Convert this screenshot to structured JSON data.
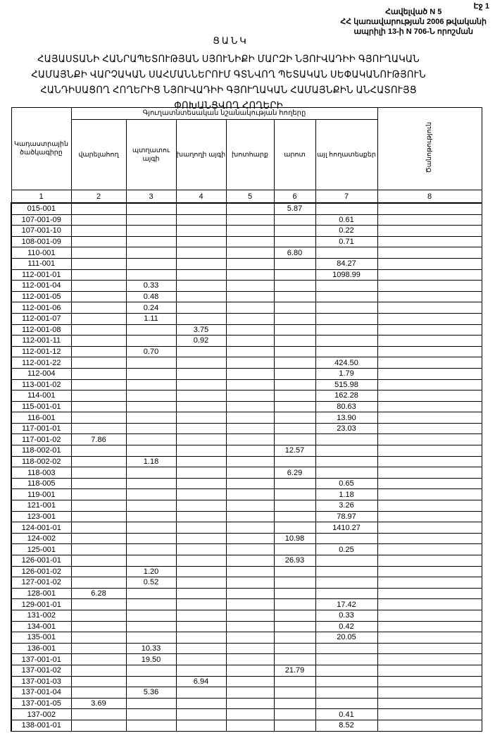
{
  "header": {
    "page": "Էջ 1",
    "annex_lines": [
      "Հավելված N 5",
      "ՀՀ կառավարության 2006 թվականի",
      "ապրիլի 13-ի N 706-Ն որոշման"
    ],
    "list_title": "ՑԱՆԿ",
    "main_title": "ՀԱՅԱՍՏԱՆԻ ՀԱՆՐԱՊԵՏՈՒԹՅԱՆ ՍՅՈՒՆԻՔԻ ՄԱՐԶԻ ՆՅՈՒՎԱԴԻԻ ԳՅՈՒՂԱԿԱՆ ՀԱՄԱՅՆՔԻ ՎԱՐՉԱԿԱՆ ՍԱՀՄԱՆՆԵՐՈՒՄ ԳՏՆՎՈՂ ՊԵՏԱԿԱՆ ՍԵՓԱԿԱՆՈՒԹՅՈՒՆ ՀԱՆԴԻՍԱՑՈՂ ՀՈՂԵՐԻՑ ՆՅՈՒՎԱԴԻԻ ԳՅՈՒՂԱԿԱՆ ՀԱՄԱՅՆՔԻՆ ԱՆՀԱՏՈՒՅՑ ՓՈԽԱՆՑՎՈՂ ՀՈՂԵՐԻ"
  },
  "table": {
    "group_header": "Գյուղատնտեսական նշանակության հողերը",
    "columns": [
      "Կադաստրային ծածկագիրը",
      "վարելահող",
      "պտղատու այգի",
      "խաղողի այգի",
      "խոտհարք",
      "արոտ",
      "այլ հողատեսքեր",
      "Ծանոթություն"
    ],
    "column_numbers": [
      "1",
      "2",
      "3",
      "4",
      "5",
      "6",
      "7",
      "8"
    ],
    "rows": [
      [
        "015-001",
        "",
        "",
        "",
        "",
        "5.87",
        ""
      ],
      [
        "107-001-09",
        "",
        "",
        "",
        "",
        "",
        "0.61"
      ],
      [
        "107-001-10",
        "",
        "",
        "",
        "",
        "",
        "0.22"
      ],
      [
        "108-001-09",
        "",
        "",
        "",
        "",
        "",
        "0.71"
      ],
      [
        "110-001",
        "",
        "",
        "",
        "",
        "6.80",
        ""
      ],
      [
        "111-001",
        "",
        "",
        "",
        "",
        "",
        "84.27"
      ],
      [
        "112-001-01",
        "",
        "",
        "",
        "",
        "",
        "1098.99"
      ],
      [
        "112-001-04",
        "",
        "0.33",
        "",
        "",
        "",
        ""
      ],
      [
        "112-001-05",
        "",
        "0.48",
        "",
        "",
        "",
        ""
      ],
      [
        "112-001-06",
        "",
        "0.24",
        "",
        "",
        "",
        ""
      ],
      [
        "112-001-07",
        "",
        "1.11",
        "",
        "",
        "",
        ""
      ],
      [
        "112-001-08",
        "",
        "",
        "3.75",
        "",
        "",
        ""
      ],
      [
        "112-001-11",
        "",
        "",
        "0.92",
        "",
        "",
        ""
      ],
      [
        "112-001-12",
        "",
        "0.70",
        "",
        "",
        "",
        ""
      ],
      [
        "112-001-22",
        "",
        "",
        "",
        "",
        "",
        "424.50"
      ],
      [
        "112-004",
        "",
        "",
        "",
        "",
        "",
        "1.79"
      ],
      [
        "113-001-02",
        "",
        "",
        "",
        "",
        "",
        "515.98"
      ],
      [
        "114-001",
        "",
        "",
        "",
        "",
        "",
        "162.28"
      ],
      [
        "115-001-01",
        "",
        "",
        "",
        "",
        "",
        "80.63"
      ],
      [
        "116-001",
        "",
        "",
        "",
        "",
        "",
        "13.90"
      ],
      [
        "117-001-01",
        "",
        "",
        "",
        "",
        "",
        "23.03"
      ],
      [
        "117-001-02",
        "7.86",
        "",
        "",
        "",
        "",
        ""
      ],
      [
        "118-002-01",
        "",
        "",
        "",
        "",
        "12.57",
        ""
      ],
      [
        "118-002-02",
        "",
        "1.18",
        "",
        "",
        "",
        ""
      ],
      [
        "118-003",
        "",
        "",
        "",
        "",
        "6.29",
        ""
      ],
      [
        "118-005",
        "",
        "",
        "",
        "",
        "",
        "0.65"
      ],
      [
        "119-001",
        "",
        "",
        "",
        "",
        "",
        "1.18"
      ],
      [
        "121-001",
        "",
        "",
        "",
        "",
        "",
        "3.26"
      ],
      [
        "123-001",
        "",
        "",
        "",
        "",
        "",
        "78.97"
      ],
      [
        "124-001-01",
        "",
        "",
        "",
        "",
        "",
        "1410.27"
      ],
      [
        "124-002",
        "",
        "",
        "",
        "",
        "10.98",
        ""
      ],
      [
        "125-001",
        "",
        "",
        "",
        "",
        "",
        "0.25"
      ],
      [
        "126-001-01",
        "",
        "",
        "",
        "",
        "26.93",
        ""
      ],
      [
        "126-001-02",
        "",
        "1.20",
        "",
        "",
        "",
        ""
      ],
      [
        "127-001-02",
        "",
        "0.52",
        "",
        "",
        "",
        ""
      ],
      [
        "128-001",
        "6.28",
        "",
        "",
        "",
        "",
        ""
      ],
      [
        "129-001-01",
        "",
        "",
        "",
        "",
        "",
        "17.42"
      ],
      [
        "131-002",
        "",
        "",
        "",
        "",
        "",
        "0.33"
      ],
      [
        "134-001",
        "",
        "",
        "",
        "",
        "",
        "0.42"
      ],
      [
        "135-001",
        "",
        "",
        "",
        "",
        "",
        "20.05"
      ],
      [
        "136-001",
        "",
        "10.33",
        "",
        "",
        "",
        ""
      ],
      [
        "137-001-01",
        "",
        "19.50",
        "",
        "",
        "",
        ""
      ],
      [
        "137-001-02",
        "",
        "",
        "",
        "",
        "21.79",
        ""
      ],
      [
        "137-001-03",
        "",
        "",
        "6.94",
        "",
        "",
        ""
      ],
      [
        "137-001-04",
        "",
        "5.36",
        "",
        "",
        "",
        ""
      ],
      [
        "137-001-05",
        "3.69",
        "",
        "",
        "",
        "",
        ""
      ],
      [
        "137-002",
        "",
        "",
        "",
        "",
        "",
        "0.41"
      ],
      [
        "138-001-01",
        "",
        "",
        "",
        "",
        "",
        "8.52"
      ]
    ]
  }
}
